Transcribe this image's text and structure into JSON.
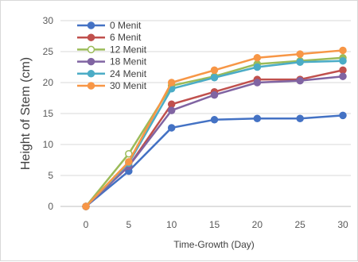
{
  "chart_data": {
    "type": "line",
    "xlabel": "Time-Growth (Day)",
    "ylabel": "Height of Stem (cm)",
    "x": [
      0,
      5,
      10,
      15,
      20,
      25,
      30
    ],
    "xlim": [
      0,
      30
    ],
    "ylim": [
      0,
      30
    ],
    "yticks": [
      0,
      5,
      10,
      15,
      20,
      25,
      30
    ],
    "grid": "horizontal",
    "legend_position": "top-left",
    "series": [
      {
        "name": "0 Menit",
        "color": "#4472c4",
        "values": [
          0,
          5.7,
          12.7,
          14.0,
          14.2,
          14.2,
          14.7
        ]
      },
      {
        "name": "6 Menit",
        "color": "#c0504d",
        "values": [
          0,
          6.5,
          16.5,
          18.5,
          20.5,
          20.5,
          22.0
        ]
      },
      {
        "name": "12 Menit",
        "color": "#9bbb59",
        "values": [
          0,
          8.5,
          19.5,
          21.0,
          23.0,
          23.5,
          24.0
        ]
      },
      {
        "name": "18 Menit",
        "color": "#8064a2",
        "values": [
          0,
          6.5,
          15.5,
          18.0,
          20.0,
          20.3,
          21.0
        ]
      },
      {
        "name": "24 Menit",
        "color": "#4bacc6",
        "values": [
          0,
          7.0,
          19.0,
          20.8,
          22.5,
          23.3,
          23.5
        ]
      },
      {
        "name": "30 Menit",
        "color": "#f79646",
        "values": [
          0,
          7.2,
          20.0,
          22.0,
          24.0,
          24.6,
          25.2
        ]
      }
    ]
  }
}
